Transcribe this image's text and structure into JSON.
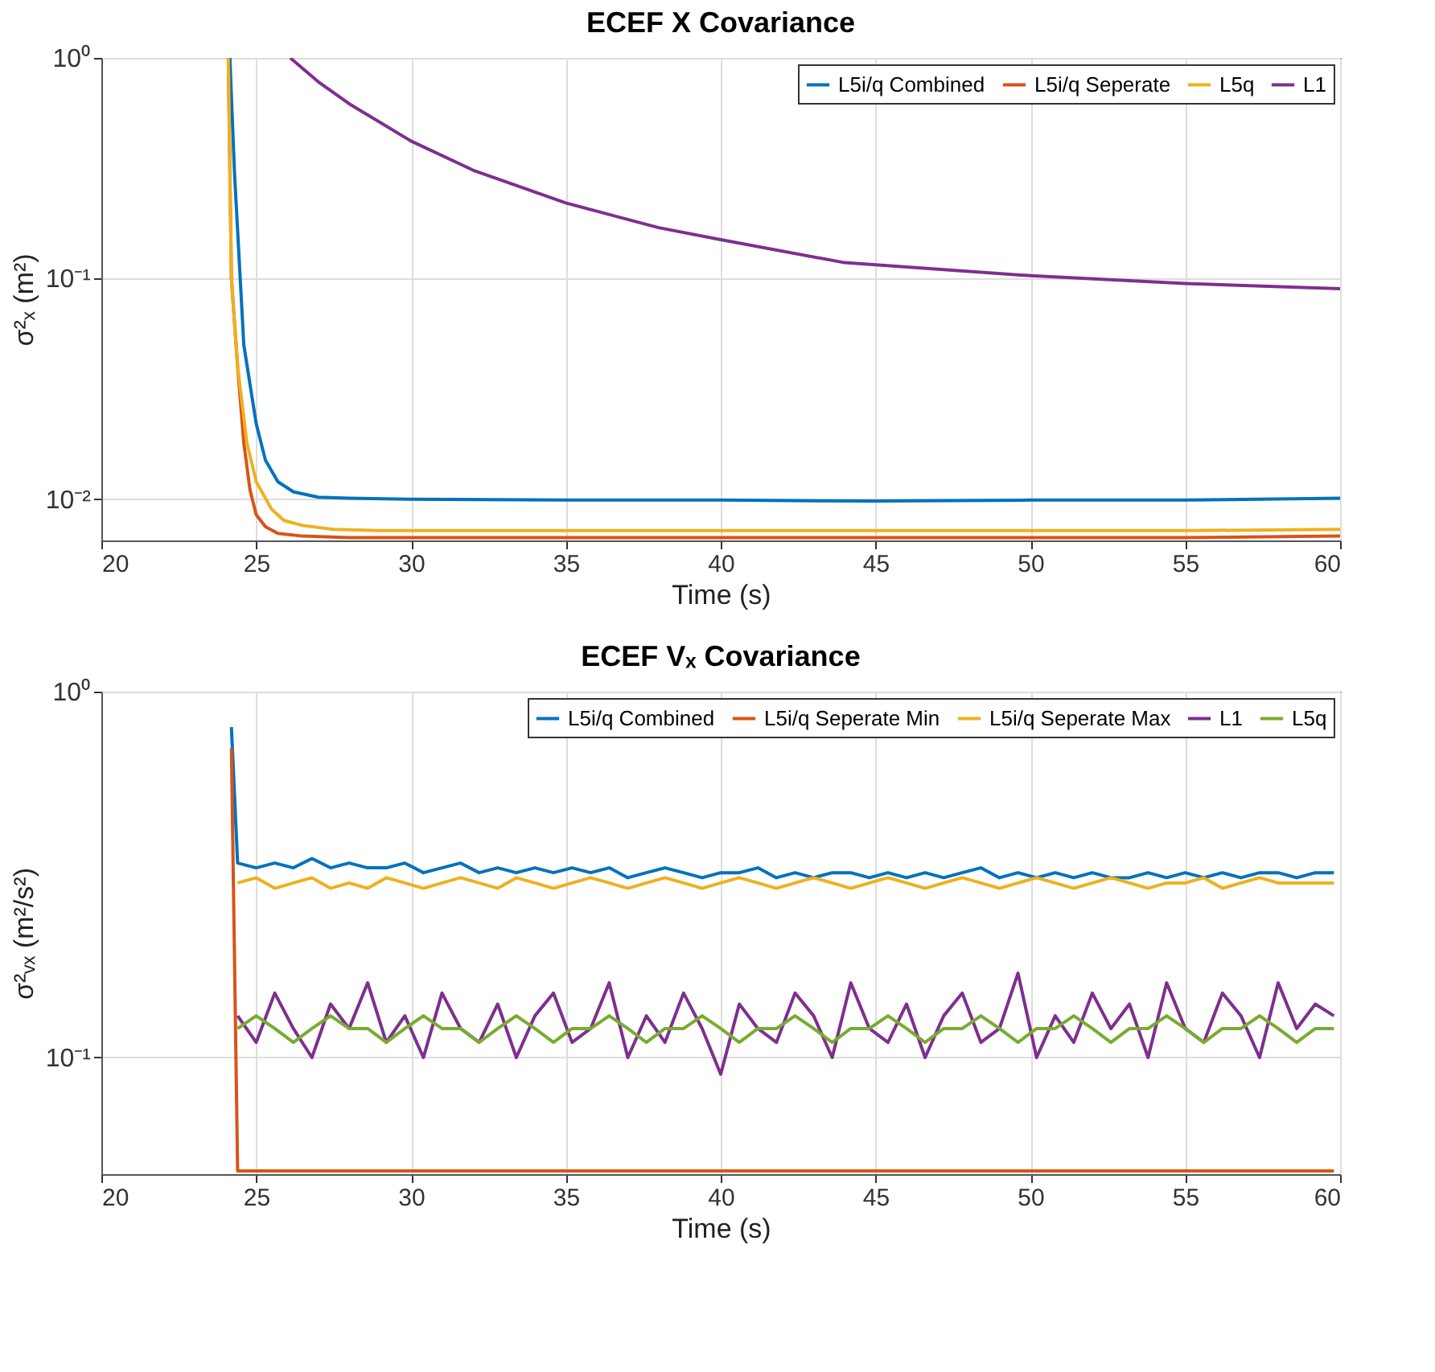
{
  "chart_data": [
    {
      "type": "line",
      "title": "ECEF X Covariance",
      "xlabel": "Time (s)",
      "ylabel": "σ²ₓ (m²)",
      "log": true,
      "grid": true,
      "legend": "top right",
      "xlim": [
        20,
        60
      ],
      "xticks": [
        20,
        25,
        30,
        35,
        40,
        45,
        50,
        55,
        60
      ],
      "ylim": [
        0.0065,
        1
      ],
      "yticks": [
        {
          "value": 0.01,
          "label": "10⁻²"
        },
        {
          "value": 0.1,
          "label": "10⁻¹"
        },
        {
          "value": 1,
          "label": "10⁰"
        }
      ],
      "series": [
        {
          "name": "L5i/q Combined",
          "color": "#0072bd",
          "x": [
            24.15,
            24.3,
            24.6,
            25.0,
            25.3,
            25.7,
            26.2,
            27,
            28,
            30,
            35,
            40,
            45,
            50,
            55,
            60
          ],
          "values": [
            1,
            0.3,
            0.05,
            0.022,
            0.015,
            0.012,
            0.0108,
            0.0102,
            0.0101,
            0.01,
            0.0099,
            0.0099,
            0.0098,
            0.0099,
            0.0099,
            0.0101
          ]
        },
        {
          "name": "L5i/q Seperate",
          "color": "#d95319",
          "x": [
            24.1,
            24.2,
            24.4,
            24.6,
            24.8,
            25.0,
            25.3,
            25.7,
            26.5,
            28,
            35,
            45,
            55,
            60
          ],
          "values": [
            1,
            0.1,
            0.04,
            0.018,
            0.011,
            0.0085,
            0.0075,
            0.007,
            0.0068,
            0.0067,
            0.0067,
            0.0067,
            0.0067,
            0.0068
          ]
        },
        {
          "name": "L5q",
          "color": "#edb120",
          "x": [
            24.1,
            24.2,
            24.4,
            24.7,
            25.0,
            25.5,
            25.9,
            26.5,
            27.5,
            29,
            35,
            45,
            55,
            60
          ],
          "values": [
            1,
            0.1,
            0.04,
            0.018,
            0.012,
            0.009,
            0.008,
            0.0076,
            0.0073,
            0.0072,
            0.0072,
            0.0072,
            0.0072,
            0.0073
          ]
        },
        {
          "name": "L1",
          "color": "#7e2f8e",
          "x": [
            26.1,
            27,
            28,
            30,
            32,
            35,
            38,
            40,
            44,
            50,
            55,
            60
          ],
          "values": [
            1,
            0.78,
            0.62,
            0.42,
            0.31,
            0.22,
            0.17,
            0.15,
            0.118,
            0.103,
            0.095,
            0.09
          ]
        }
      ]
    },
    {
      "type": "line",
      "title": "ECEF Vₓ Covariance",
      "xlabel": "Time (s)",
      "ylabel": "σ²ᵥₓ (m²/s²)",
      "log": true,
      "grid": true,
      "legend": "top right",
      "xlim": [
        20,
        60
      ],
      "xticks": [
        20,
        25,
        30,
        35,
        40,
        45,
        50,
        55,
        60
      ],
      "ylim": [
        0.048,
        1
      ],
      "yticks": [
        {
          "value": 0.1,
          "label": "10⁻¹"
        },
        {
          "value": 1,
          "label": "10⁰"
        }
      ],
      "x": [
        24.2,
        24.4,
        25,
        25.6,
        26.2,
        26.8,
        27.4,
        28,
        28.6,
        29.2,
        29.8,
        30.4,
        31,
        31.6,
        32.2,
        32.8,
        33.4,
        34,
        34.6,
        35.2,
        35.8,
        36.4,
        37,
        37.6,
        38.2,
        38.8,
        39.4,
        40,
        40.6,
        41.2,
        41.8,
        42.4,
        43,
        43.6,
        44.2,
        44.8,
        45.4,
        46,
        46.6,
        47.2,
        47.8,
        48.4,
        49,
        49.6,
        50.2,
        50.8,
        51.4,
        52,
        52.6,
        53.2,
        53.8,
        54.4,
        55,
        55.6,
        56.2,
        56.8,
        57.4,
        58,
        58.6,
        59.2,
        59.8
      ],
      "series": [
        {
          "name": "L5i/q Combined",
          "color": "#0072bd",
          "values": [
            0.8,
            0.34,
            0.33,
            0.34,
            0.33,
            0.35,
            0.33,
            0.34,
            0.33,
            0.33,
            0.34,
            0.32,
            0.33,
            0.34,
            0.32,
            0.33,
            0.32,
            0.33,
            0.32,
            0.33,
            0.32,
            0.33,
            0.31,
            0.32,
            0.33,
            0.32,
            0.31,
            0.32,
            0.32,
            0.33,
            0.31,
            0.32,
            0.31,
            0.32,
            0.32,
            0.31,
            0.32,
            0.31,
            0.32,
            0.31,
            0.32,
            0.33,
            0.31,
            0.32,
            0.31,
            0.32,
            0.31,
            0.32,
            0.31,
            0.31,
            0.32,
            0.31,
            0.32,
            0.31,
            0.32,
            0.31,
            0.32,
            0.32,
            0.31,
            0.32,
            0.32
          ]
        },
        {
          "name": "L5i/q Seperate Min",
          "color": "#d95319",
          "values": [
            0.7,
            0.049,
            0.049,
            0.049,
            0.049,
            0.049,
            0.049,
            0.049,
            0.049,
            0.049,
            0.049,
            0.049,
            0.049,
            0.049,
            0.049,
            0.049,
            0.049,
            0.049,
            0.049,
            0.049,
            0.049,
            0.049,
            0.049,
            0.049,
            0.049,
            0.049,
            0.049,
            0.049,
            0.049,
            0.049,
            0.049,
            0.049,
            0.049,
            0.049,
            0.049,
            0.049,
            0.049,
            0.049,
            0.049,
            0.049,
            0.049,
            0.049,
            0.049,
            0.049,
            0.049,
            0.049,
            0.049,
            0.049,
            0.049,
            0.049,
            0.049,
            0.049,
            0.049,
            0.049,
            0.049,
            0.049,
            0.049,
            0.049,
            0.049,
            0.049,
            0.049
          ]
        },
        {
          "name": "L5i/q Seperate Max",
          "color": "#edb120",
          "values": [
            null,
            0.3,
            0.31,
            0.29,
            0.3,
            0.31,
            0.29,
            0.3,
            0.29,
            0.31,
            0.3,
            0.29,
            0.3,
            0.31,
            0.3,
            0.29,
            0.31,
            0.3,
            0.29,
            0.3,
            0.31,
            0.3,
            0.29,
            0.3,
            0.31,
            0.3,
            0.29,
            0.3,
            0.31,
            0.3,
            0.29,
            0.3,
            0.31,
            0.3,
            0.29,
            0.3,
            0.31,
            0.3,
            0.29,
            0.3,
            0.31,
            0.3,
            0.29,
            0.3,
            0.31,
            0.3,
            0.29,
            0.3,
            0.31,
            0.3,
            0.29,
            0.3,
            0.3,
            0.31,
            0.29,
            0.3,
            0.31,
            0.3,
            0.3,
            0.3,
            0.3
          ]
        },
        {
          "name": "L1",
          "color": "#7e2f8e",
          "values": [
            null,
            0.13,
            0.11,
            0.15,
            0.12,
            0.1,
            0.14,
            0.12,
            0.16,
            0.11,
            0.13,
            0.1,
            0.15,
            0.12,
            0.11,
            0.14,
            0.1,
            0.13,
            0.15,
            0.11,
            0.12,
            0.16,
            0.1,
            0.13,
            0.11,
            0.15,
            0.12,
            0.09,
            0.14,
            0.12,
            0.11,
            0.15,
            0.13,
            0.1,
            0.16,
            0.12,
            0.11,
            0.14,
            0.1,
            0.13,
            0.15,
            0.11,
            0.12,
            0.17,
            0.1,
            0.13,
            0.11,
            0.15,
            0.12,
            0.14,
            0.1,
            0.16,
            0.12,
            0.11,
            0.15,
            0.13,
            0.1,
            0.16,
            0.12,
            0.14,
            0.13
          ]
        },
        {
          "name": "L5q",
          "color": "#77ac30",
          "values": [
            null,
            0.12,
            0.13,
            0.12,
            0.11,
            0.12,
            0.13,
            0.12,
            0.12,
            0.11,
            0.12,
            0.13,
            0.12,
            0.12,
            0.11,
            0.12,
            0.13,
            0.12,
            0.11,
            0.12,
            0.12,
            0.13,
            0.12,
            0.11,
            0.12,
            0.12,
            0.13,
            0.12,
            0.11,
            0.12,
            0.12,
            0.13,
            0.12,
            0.11,
            0.12,
            0.12,
            0.13,
            0.12,
            0.11,
            0.12,
            0.12,
            0.13,
            0.12,
            0.11,
            0.12,
            0.12,
            0.13,
            0.12,
            0.11,
            0.12,
            0.12,
            0.13,
            0.12,
            0.11,
            0.12,
            0.12,
            0.13,
            0.12,
            0.11,
            0.12,
            0.12
          ]
        }
      ]
    }
  ]
}
